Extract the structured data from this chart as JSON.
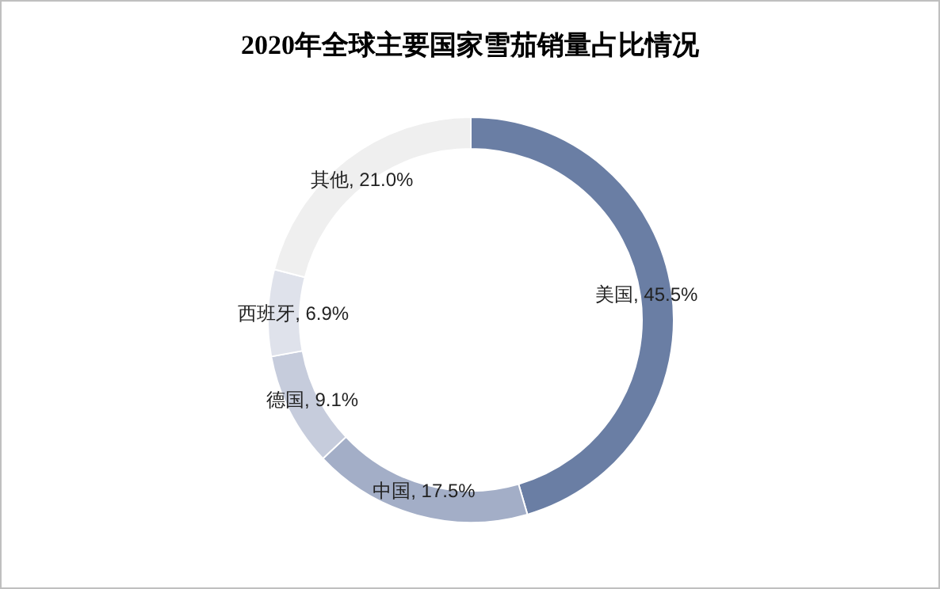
{
  "chart_data": {
    "type": "donut",
    "title": "2020年全球主要国家雪茄销量占比情况",
    "categories": [
      "美国",
      "中国",
      "德国",
      "西班牙",
      "其他"
    ],
    "values": [
      45.5,
      17.5,
      9.1,
      6.9,
      21.0
    ],
    "colors": [
      "#6a7ea4",
      "#a3aec7",
      "#c6ccdc",
      "#dfe2eb",
      "#efefef"
    ],
    "value_labels": [
      "45.5%",
      "17.5%",
      "9.1%",
      "6.9%",
      "21.0%"
    ],
    "legend": false
  }
}
